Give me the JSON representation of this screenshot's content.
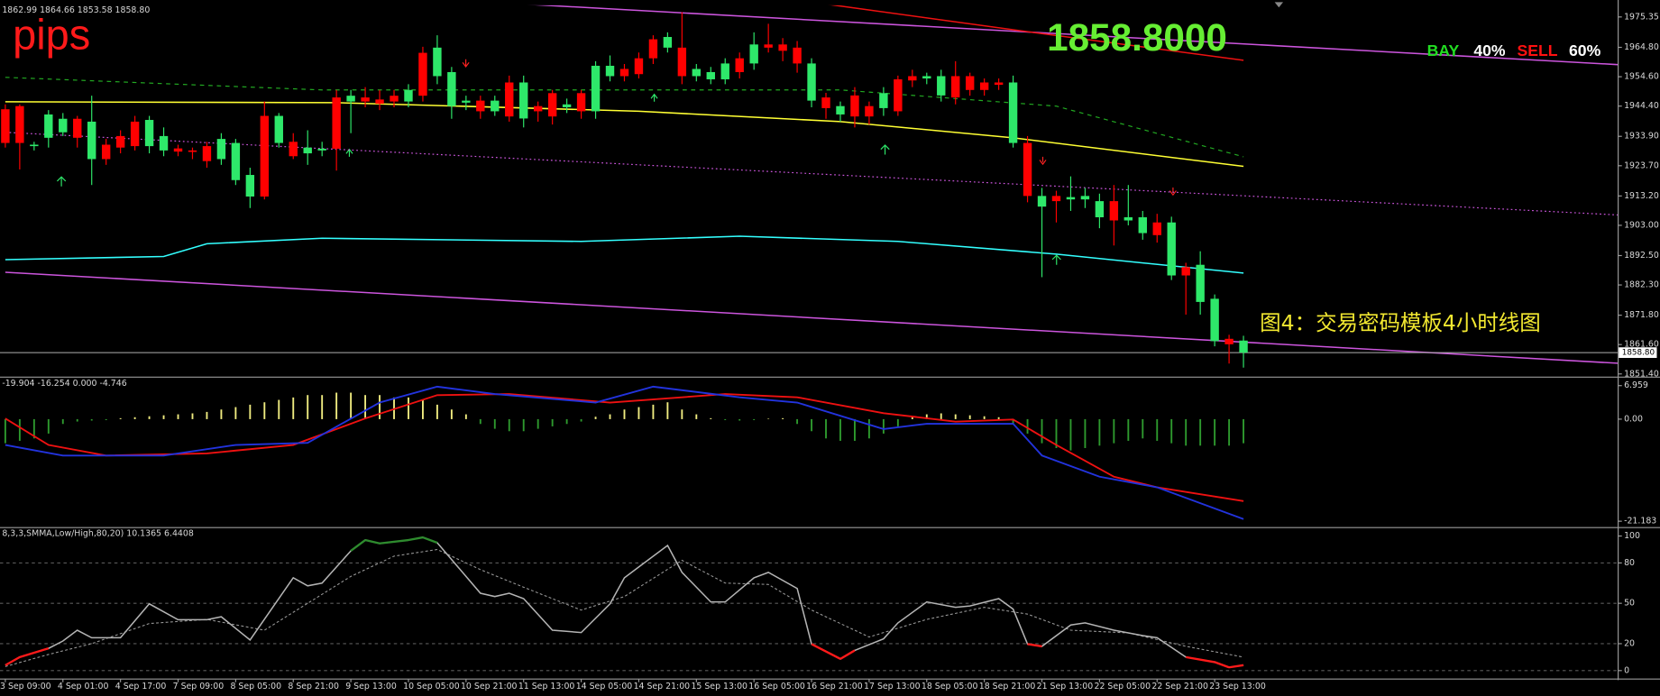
{
  "chart_data": [
    {
      "type": "candlestick",
      "info": "1862.99 1864.66 1853.58 1858.80",
      "watermark": "pips",
      "price_text": "1858.8000",
      "caption": "图4：交易密码模板4小时线图",
      "sentiment": [
        {
          "name": "BAY",
          "value": 40,
          "value_label": "40%",
          "color": "#22dd22"
        },
        {
          "name": "SELL",
          "value": 60,
          "value_label": "60%",
          "color": "#ff1111"
        }
      ],
      "last_price": 1858.8,
      "last_price_label": "1858.80",
      "up_color": "#ff0000",
      "down_color": "#2ee86a",
      "xlim": [
        -0.37,
        111.99
      ],
      "ylim": [
        1850.66,
        1979.4
      ],
      "yticks": [
        1975.35,
        {
          "value": 1964.8,
          "label": "1964.80"
        },
        {
          "value": 1954.6,
          "label": "1954.60"
        },
        {
          "value": 1944.4,
          "label": "1944.40"
        },
        {
          "value": 1933.9,
          "label": "1933.90"
        },
        {
          "value": 1923.7,
          "label": "1923.70"
        },
        {
          "value": 1913.2,
          "label": "1913.20"
        },
        {
          "value": 1903.0,
          "label": "1903.00"
        },
        {
          "value": 1892.5,
          "label": "1892.50"
        },
        {
          "value": 1882.3,
          "label": "1882.30"
        },
        {
          "value": 1871.8,
          "label": "1871.80"
        },
        {
          "value": 1861.6,
          "label": "1861.60"
        },
        {
          "value": 1851.4,
          "label": "1851.40"
        }
      ],
      "categories": [
        "3 Sep 09:00",
        null,
        null,
        null,
        "4 Sep 01:00",
        null,
        null,
        null,
        "4 Sep 17:00",
        null,
        null,
        null,
        "7 Sep 09:00",
        null,
        null,
        null,
        "8 Sep 05:00",
        null,
        null,
        null,
        "8 Sep 21:00",
        null,
        null,
        null,
        "9 Sep 13:00",
        null,
        null,
        null,
        "10 Sep 05:00",
        null,
        null,
        null,
        "10 Sep 21:00",
        null,
        null,
        null,
        "11 Sep 13:00",
        null,
        null,
        null,
        "14 Sep 05:00",
        null,
        null,
        null,
        "14 Sep 21:00",
        null,
        null,
        null,
        "15 Sep 13:00",
        null,
        null,
        null,
        "16 Sep 05:00",
        null,
        null,
        null,
        "16 Sep 21:00",
        null,
        null,
        null,
        "17 Sep 13:00",
        null,
        null,
        null,
        "18 Sep 05:00",
        null,
        null,
        null,
        "18 Sep 21:00",
        null,
        null,
        null,
        "21 Sep 13:00",
        null,
        null,
        null,
        "22 Sep 05:00",
        null,
        null,
        null,
        "22 Sep 21:00",
        null,
        null,
        null,
        "23 Sep 13:00",
        null,
        null
      ],
      "open": [
        1931.6,
        1931.6,
        1931,
        1941.5,
        1940,
        1933.4,
        1939,
        1926,
        1930,
        1930.5,
        1939.6,
        1934,
        1928.6,
        1928.5,
        1925.3,
        1933,
        1931.6,
        1920.5,
        1913,
        1941,
        1927,
        1930,
        1929.6,
        1929.6,
        1948,
        1946,
        1945.2,
        1946,
        1950,
        1948,
        1964.7,
        1956.2,
        1946.3,
        1942.6,
        1946.3,
        1940.8,
        1952.6,
        1942.6,
        1940.8,
        1945,
        1942.6,
        1958.4,
        1958.4,
        1954.8,
        1955.5,
        1961,
        1968.4,
        1954.8,
        1957.3,
        1956.2,
        1959.2,
        1956.2,
        1965.8,
        1964.7,
        1963.6,
        1959.2,
        1959.2,
        1943.7,
        1944.4,
        1940.8,
        1940.8,
        1948.9,
        1942.6,
        1953.3,
        1954.8,
        1954.8,
        1947.4,
        1950,
        1950,
        1951.8,
        1952.6,
        1913.2,
        1913.2,
        1911.4,
        1912.8,
        1913.2,
        1911.4,
        1904.7,
        1905.8,
        1905.8,
        1899.6,
        1904,
        1885.6,
        1889.3,
        1877.5,
        1861.7,
        1862.99
      ],
      "high": [
        1945,
        1945,
        1932,
        1943,
        1942,
        1941,
        1948,
        1933,
        1936,
        1941,
        1941,
        1937,
        1931,
        1930,
        1932,
        1935,
        1933,
        1923,
        1946,
        1942,
        1935,
        1936,
        1932,
        1950,
        1950,
        1951,
        1950,
        1950,
        1952,
        1965,
        1969,
        1958,
        1948,
        1948,
        1948,
        1955,
        1955,
        1946,
        1950,
        1947,
        1950,
        1960,
        1962,
        1959,
        1963,
        1969,
        1970,
        1977,
        1959,
        1958,
        1961,
        1963,
        1970,
        1973,
        1968,
        1967,
        1961,
        1949,
        1946,
        1951,
        1946,
        1951,
        1955,
        1957,
        1956,
        1957,
        1960,
        1956,
        1954,
        1954,
        1955,
        1934,
        1916,
        1915,
        1920,
        1916,
        1914,
        1917,
        1917,
        1908,
        1907,
        1906,
        1890,
        1894,
        1879,
        1865,
        1864.66
      ],
      "low": [
        1930,
        1922.4,
        1929,
        1930,
        1934,
        1930,
        1917,
        1924,
        1928,
        1929,
        1928,
        1927,
        1927,
        1926,
        1923,
        1924,
        1917,
        1909,
        1912,
        1930,
        1926,
        1924,
        1927,
        1922,
        1935,
        1944,
        1943,
        1944,
        1944,
        1946,
        1952,
        1940,
        1943,
        1940,
        1941,
        1939,
        1937,
        1939,
        1938,
        1942,
        1940,
        1940,
        1953,
        1953,
        1954,
        1959,
        1963,
        1952,
        1953,
        1952,
        1952,
        1954,
        1957,
        1963,
        1960,
        1956,
        1944,
        1940,
        1939,
        1937,
        1938,
        1941,
        1941,
        1951,
        1952,
        1946,
        1945,
        1948,
        1948,
        1950,
        1930,
        1911,
        1885,
        1904,
        1908,
        1909,
        1902,
        1896,
        1903,
        1898,
        1897,
        1884,
        1872,
        1872,
        1861,
        1855,
        1853.58
      ],
      "close": [
        1943.3,
        1944.4,
        1930.5,
        1933.4,
        1935.3,
        1940,
        1926,
        1931,
        1934,
        1939,
        1930.5,
        1929,
        1929.7,
        1929,
        1930.5,
        1926,
        1918.7,
        1913,
        1941,
        1931.6,
        1932,
        1928,
        1929,
        1947.4,
        1946,
        1947.4,
        1946.7,
        1948,
        1946,
        1962.9,
        1954.8,
        1944.4,
        1945.6,
        1946.3,
        1942.6,
        1952.6,
        1940.1,
        1944.4,
        1948.9,
        1944,
        1948.9,
        1942.6,
        1954.8,
        1957.3,
        1961,
        1967.6,
        1964.7,
        1964.7,
        1954.8,
        1953.7,
        1953.7,
        1961,
        1959.2,
        1965.8,
        1965.8,
        1964.7,
        1946.3,
        1947.4,
        1941.5,
        1948.1,
        1944.4,
        1943.7,
        1953.7,
        1954.8,
        1954,
        1948.1,
        1954.8,
        1954.8,
        1952.6,
        1952.6,
        1931.6,
        1931.6,
        1909.5,
        1913.2,
        1912,
        1912,
        1905.8,
        1911.4,
        1904.7,
        1900.3,
        1904,
        1885.6,
        1888.5,
        1876.4,
        1862.8,
        1863.6,
        1858.8
      ],
      "overlays": [
        {
          "color": "#ffff33",
          "style": "solid",
          "x": [
            0,
            23,
            44,
            58,
            70,
            86
          ],
          "values": [
            1945.9,
            1945.6,
            1942.6,
            1939,
            1933.4,
            1923.5
          ]
        },
        {
          "color": "#33ffff",
          "style": "solid",
          "x": [
            0,
            11,
            14,
            22,
            40,
            51,
            62,
            73,
            86
          ],
          "values": [
            1891.1,
            1892.2,
            1896.6,
            1898.5,
            1897.4,
            1899.2,
            1897.4,
            1893,
            1886.4
          ]
        },
        {
          "color": "#cc55dd",
          "style": "solid",
          "x": [
            0,
            112
          ],
          "values": [
            1886.7,
            1855.1
          ]
        },
        {
          "color": "#cc55dd",
          "style": "solid",
          "x": [
            31,
            112
          ],
          "values": [
            1981.2,
            1958.8
          ]
        },
        {
          "color": "#cc55dd",
          "style": "dotted",
          "x": [
            0,
            112
          ],
          "values": [
            1935.3,
            1906.6
          ]
        },
        {
          "color": "#ee1111",
          "style": "solid",
          "x": [
            55,
            70,
            86
          ],
          "values": [
            1981.2,
            1970.9,
            1960.3
          ]
        },
        {
          "color": "#22aa22",
          "style": "dashed",
          "x": [
            0,
            22,
            58,
            73,
            86
          ],
          "values": [
            1954.4,
            1950,
            1950,
            1944.4,
            1926.8
          ]
        }
      ]
    },
    {
      "type": "macd",
      "info": "-19.904 -16.254 0.000 -4.746",
      "pos_color": "#f0ec80",
      "neg_color": "#2e9a2e",
      "xlim": [
        -0.37,
        111.99
      ],
      "ylim": [
        -22.28,
        8.5
      ],
      "yticks": [
        6.959,
        {
          "value": 0,
          "label": "0.00"
        },
        -21.183
      ],
      "values": [
        -5,
        -4.5,
        -4,
        -3,
        -1,
        -0.5,
        -0.3,
        -0.2,
        0.2,
        0.4,
        0.6,
        0.8,
        1,
        1.2,
        1.5,
        2,
        2.5,
        3,
        3.5,
        4,
        4.5,
        5,
        5,
        5.5,
        5.5,
        5,
        5,
        4.5,
        4.5,
        4,
        3,
        2,
        1,
        -1,
        -2,
        -2.5,
        -2.5,
        -2,
        -1.5,
        -1,
        -0.5,
        0.5,
        1,
        2,
        2.5,
        3,
        3.5,
        2,
        1,
        0.2,
        -0.2,
        -0.3,
        -0.2,
        0.1,
        0.2,
        -1,
        -2.5,
        -4,
        -4.5,
        -4.5,
        -4,
        -3,
        -1.5,
        0.5,
        1,
        1.2,
        1,
        0.8,
        0.6,
        0.4,
        -1,
        -3,
        -5,
        -6,
        -6.5,
        -6,
        -5.5,
        -5,
        -4.5,
        -4,
        -4.5,
        -5,
        -5.5,
        -5.5,
        -5.5,
        -5.5,
        -5
      ],
      "lines": [
        {
          "color": "#ee1111",
          "x": [
            0,
            3,
            7,
            14,
            20,
            25,
            30,
            35,
            42,
            50,
            55,
            61,
            66,
            70,
            73,
            77,
            80,
            86
          ],
          "values": [
            0.14,
            -5.35,
            -7.55,
            -7.11,
            -5.35,
            0.14,
            4.98,
            5.2,
            3.44,
            5.2,
            4.54,
            1.24,
            -0.51,
            -0.08,
            -5.35,
            -11.95,
            -14.15,
            -17.0
          ]
        },
        {
          "color": "#2233dd",
          "x": [
            0,
            4,
            11,
            16,
            21,
            26,
            30,
            34,
            41,
            45,
            51,
            55,
            61,
            64,
            70,
            72,
            76,
            80,
            86
          ],
          "values": [
            -5.35,
            -7.55,
            -7.55,
            -5.35,
            -4.91,
            3.44,
            6.74,
            5.2,
            3.44,
            6.74,
            4.54,
            3.44,
            -2.05,
            -0.95,
            -0.95,
            -7.55,
            -11.95,
            -14.15,
            -20.74
          ]
        }
      ]
    },
    {
      "type": "stochastic",
      "info": "8,3,3,SMMA,Low/High,80,20) 10.1365 6.4408",
      "overbought_level": 80,
      "oversold_level": 20,
      "main_color": "#b4b4b4",
      "overbought_color": "#2e8b2e",
      "oversold_color": "#ff1a1a",
      "signal_color": "#9a9a9a",
      "xlim": [
        -0.37,
        111.99
      ],
      "ylim": [
        -5.5,
        105.5
      ],
      "yticks": [
        0,
        20,
        50,
        80,
        100
      ],
      "main": {
        "x": [
          0,
          1,
          3,
          4,
          5,
          6,
          8,
          10,
          12,
          14,
          15,
          17,
          20,
          21,
          22,
          24,
          25,
          26,
          28,
          29,
          30,
          33,
          34,
          35,
          36,
          38,
          40,
          42,
          43,
          44,
          46,
          47,
          49,
          50,
          52,
          53,
          55,
          56,
          58,
          59,
          61,
          62,
          64,
          66,
          67,
          69,
          70,
          71,
          72,
          74,
          75,
          77,
          79,
          80,
          82,
          84,
          85,
          86
        ],
        "values": [
          4,
          10,
          16.5,
          22,
          30,
          24.4,
          24.4,
          49.6,
          37.8,
          37.8,
          40,
          22.8,
          69,
          63,
          65,
          89,
          97,
          94.5,
          97,
          99,
          95,
          57.5,
          55,
          57.5,
          53.5,
          30,
          28.3,
          49.6,
          69,
          77,
          93,
          73,
          51,
          51,
          69,
          73,
          61,
          19.7,
          8.7,
          15,
          23.6,
          35.4,
          51,
          47,
          48,
          53.5,
          45.7,
          19.7,
          18,
          33.9,
          35.4,
          30,
          26,
          24.4,
          10,
          6.3,
          2.4,
          4
        ]
      },
      "signal": {
        "x": [
          0,
          3,
          6,
          10,
          14,
          18,
          21,
          24,
          27,
          30,
          33,
          36,
          40,
          43,
          47,
          50,
          53,
          56,
          60,
          64,
          68,
          71,
          74,
          78,
          82,
          86
        ],
        "values": [
          3,
          12,
          20,
          35,
          38,
          30,
          50,
          70,
          85,
          90,
          75,
          62,
          45,
          55,
          82,
          65,
          64,
          45,
          25,
          38,
          47,
          42,
          30,
          28,
          18,
          10
        ]
      }
    }
  ]
}
